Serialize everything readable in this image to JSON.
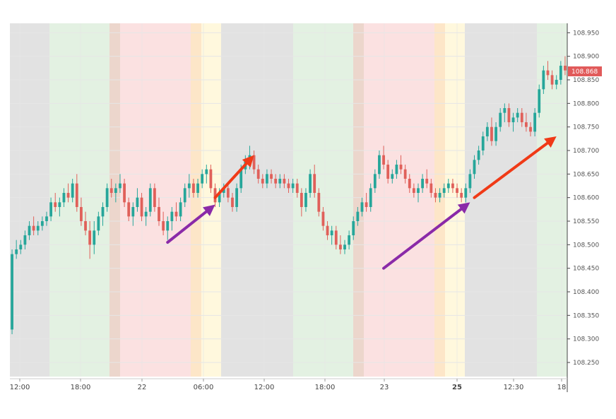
{
  "chart_data": {
    "type": "candlestick",
    "title": "",
    "xlabel": "",
    "ylabel": "",
    "ylim": [
      108.22,
      108.97
    ],
    "x_ticks": [
      "12:00",
      "18:00",
      "22",
      "06:00",
      "12:00",
      "18:00",
      "23",
      "25",
      "12:30",
      "18"
    ],
    "y_ticks": [
      "108.950",
      "108.900",
      "108.850",
      "108.800",
      "108.750",
      "108.700",
      "108.650",
      "108.600",
      "108.550",
      "108.500",
      "108.450",
      "108.400",
      "108.350",
      "108.300",
      "108.250"
    ],
    "y_tick_values": [
      108.95,
      108.9,
      108.85,
      108.8,
      108.75,
      108.7,
      108.65,
      108.6,
      108.55,
      108.5,
      108.45,
      108.4,
      108.35,
      108.3,
      108.25
    ],
    "last_price": {
      "label": "108.868",
      "value": 108.868,
      "color": "#e15a5a"
    },
    "colors": {
      "up": "#26a69a",
      "down": "#e0605a",
      "grid": "#e6e6e6",
      "axis": "#444444"
    },
    "session_bands": [
      {
        "color": "#e2e2e2"
      },
      {
        "color": "#e3f1e2"
      },
      {
        "color": "#ecd6cc"
      },
      {
        "color": "#fbe1e1"
      },
      {
        "color": "#fde6c8"
      },
      {
        "color": "#fff8dd"
      },
      {
        "color": "#e2e2e2"
      },
      {
        "color": "#e3f1e2"
      },
      {
        "color": "#ecd6cc"
      },
      {
        "color": "#fbe1e1"
      },
      {
        "color": "#fde6c8"
      },
      {
        "color": "#fff8dd"
      },
      {
        "color": "#e2e2e2"
      },
      {
        "color": "#e3f1e2"
      }
    ],
    "arrows": [
      {
        "from": {
          "bar": 36,
          "price": 108.505
        },
        "to": {
          "bar": 47,
          "price": 108.585
        },
        "color": "#8a2aa8"
      },
      {
        "from": {
          "bar": 47,
          "price": 108.6
        },
        "to": {
          "bar": 56,
          "price": 108.69
        },
        "color": "#f03a17"
      },
      {
        "from": {
          "bar": 86,
          "price": 108.45
        },
        "to": {
          "bar": 106,
          "price": 108.59
        },
        "color": "#8a2aa8"
      },
      {
        "from": {
          "bar": 107,
          "price": 108.6
        },
        "to": {
          "bar": 126,
          "price": 108.73
        },
        "color": "#f03a17"
      }
    ],
    "series": [
      {
        "ohlc": [
          [
            108.32,
            108.49,
            108.31,
            108.48
          ],
          [
            108.48,
            108.51,
            108.47,
            108.49
          ],
          [
            108.49,
            108.51,
            108.48,
            108.5
          ],
          [
            108.5,
            108.53,
            108.49,
            108.52
          ],
          [
            108.52,
            108.55,
            108.51,
            108.54
          ],
          [
            108.54,
            108.56,
            108.52,
            108.53
          ],
          [
            108.53,
            108.55,
            108.52,
            108.54
          ],
          [
            108.54,
            108.56,
            108.53,
            108.55
          ],
          [
            108.55,
            108.57,
            108.54,
            108.56
          ],
          [
            108.56,
            108.6,
            108.55,
            108.59
          ],
          [
            108.59,
            108.61,
            108.57,
            108.58
          ],
          [
            108.58,
            108.6,
            108.56,
            108.59
          ],
          [
            108.59,
            108.62,
            108.58,
            108.61
          ],
          [
            108.61,
            108.63,
            108.59,
            108.6
          ],
          [
            108.6,
            108.64,
            108.59,
            108.63
          ],
          [
            108.63,
            108.65,
            108.57,
            108.58
          ],
          [
            108.58,
            108.6,
            108.54,
            108.55
          ],
          [
            108.55,
            108.57,
            108.52,
            108.53
          ],
          [
            108.53,
            108.55,
            108.47,
            108.5
          ],
          [
            108.5,
            108.55,
            108.48,
            108.53
          ],
          [
            108.53,
            108.57,
            108.52,
            108.56
          ],
          [
            108.56,
            108.59,
            108.54,
            108.58
          ],
          [
            108.58,
            108.63,
            108.57,
            108.62
          ],
          [
            108.62,
            108.64,
            108.6,
            108.61
          ],
          [
            108.61,
            108.63,
            108.59,
            108.62
          ],
          [
            108.62,
            108.65,
            108.61,
            108.63
          ],
          [
            108.63,
            108.64,
            108.58,
            108.59
          ],
          [
            108.59,
            108.6,
            108.55,
            108.56
          ],
          [
            108.56,
            108.59,
            108.54,
            108.58
          ],
          [
            108.58,
            108.62,
            108.57,
            108.6
          ],
          [
            108.6,
            108.61,
            108.55,
            108.56
          ],
          [
            108.56,
            108.58,
            108.54,
            108.57
          ],
          [
            108.57,
            108.63,
            108.56,
            108.62
          ],
          [
            108.62,
            108.63,
            108.57,
            108.58
          ],
          [
            108.58,
            108.6,
            108.54,
            108.55
          ],
          [
            108.55,
            108.57,
            108.52,
            108.53
          ],
          [
            108.53,
            108.56,
            108.51,
            108.55
          ],
          [
            108.55,
            108.58,
            108.53,
            108.57
          ],
          [
            108.57,
            108.59,
            108.55,
            108.56
          ],
          [
            108.56,
            108.6,
            108.55,
            108.59
          ],
          [
            108.59,
            108.63,
            108.58,
            108.62
          ],
          [
            108.62,
            108.65,
            108.6,
            108.63
          ],
          [
            108.63,
            108.64,
            108.6,
            108.61
          ],
          [
            108.61,
            108.64,
            108.6,
            108.63
          ],
          [
            108.63,
            108.66,
            108.62,
            108.65
          ],
          [
            108.65,
            108.67,
            108.63,
            108.66
          ],
          [
            108.66,
            108.67,
            108.61,
            108.62
          ],
          [
            108.62,
            108.63,
            108.58,
            108.59
          ],
          [
            108.59,
            108.62,
            108.58,
            108.61
          ],
          [
            108.61,
            108.63,
            108.6,
            108.62
          ],
          [
            108.62,
            108.63,
            108.59,
            108.6
          ],
          [
            108.6,
            108.61,
            108.57,
            108.58
          ],
          [
            108.58,
            108.63,
            108.57,
            108.62
          ],
          [
            108.62,
            108.67,
            108.61,
            108.66
          ],
          [
            108.66,
            108.69,
            108.65,
            108.68
          ],
          [
            108.68,
            108.71,
            108.66,
            108.69
          ],
          [
            108.69,
            108.7,
            108.65,
            108.66
          ],
          [
            108.66,
            108.67,
            108.63,
            108.64
          ],
          [
            108.64,
            108.65,
            108.62,
            108.63
          ],
          [
            108.63,
            108.66,
            108.62,
            108.65
          ],
          [
            108.65,
            108.66,
            108.63,
            108.64
          ],
          [
            108.64,
            108.65,
            108.62,
            108.63
          ],
          [
            108.63,
            108.65,
            108.62,
            108.64
          ],
          [
            108.64,
            108.65,
            108.62,
            108.63
          ],
          [
            108.63,
            108.64,
            108.61,
            108.62
          ],
          [
            108.62,
            108.64,
            108.61,
            108.63
          ],
          [
            108.63,
            108.64,
            108.6,
            108.61
          ],
          [
            108.61,
            108.62,
            108.56,
            108.58
          ],
          [
            108.58,
            108.62,
            108.57,
            108.61
          ],
          [
            108.61,
            108.66,
            108.6,
            108.65
          ],
          [
            108.65,
            108.67,
            108.6,
            108.61
          ],
          [
            108.61,
            108.62,
            108.56,
            108.57
          ],
          [
            108.57,
            108.58,
            108.53,
            108.54
          ],
          [
            108.54,
            108.55,
            108.51,
            108.52
          ],
          [
            108.52,
            108.54,
            108.5,
            108.53
          ],
          [
            108.53,
            108.54,
            108.49,
            108.5
          ],
          [
            108.5,
            108.52,
            108.48,
            108.49
          ],
          [
            108.49,
            108.51,
            108.48,
            108.5
          ],
          [
            108.5,
            108.53,
            108.49,
            108.52
          ],
          [
            108.52,
            108.56,
            108.51,
            108.55
          ],
          [
            108.55,
            108.58,
            108.54,
            108.57
          ],
          [
            108.57,
            108.6,
            108.56,
            108.59
          ],
          [
            108.59,
            108.61,
            108.57,
            108.58
          ],
          [
            108.58,
            108.63,
            108.57,
            108.62
          ],
          [
            108.62,
            108.66,
            108.61,
            108.65
          ],
          [
            108.65,
            108.7,
            108.64,
            108.69
          ],
          [
            108.69,
            108.71,
            108.66,
            108.67
          ],
          [
            108.67,
            108.68,
            108.63,
            108.64
          ],
          [
            108.64,
            108.66,
            108.63,
            108.65
          ],
          [
            108.65,
            108.68,
            108.64,
            108.67
          ],
          [
            108.67,
            108.69,
            108.65,
            108.66
          ],
          [
            108.66,
            108.67,
            108.63,
            108.64
          ],
          [
            108.64,
            108.65,
            108.61,
            108.62
          ],
          [
            108.62,
            108.63,
            108.6,
            108.61
          ],
          [
            108.61,
            108.63,
            108.59,
            108.62
          ],
          [
            108.62,
            108.65,
            108.61,
            108.64
          ],
          [
            108.64,
            108.66,
            108.62,
            108.63
          ],
          [
            108.63,
            108.64,
            108.6,
            108.61
          ],
          [
            108.61,
            108.62,
            108.59,
            108.6
          ],
          [
            108.6,
            108.62,
            108.59,
            108.61
          ],
          [
            108.61,
            108.63,
            108.6,
            108.62
          ],
          [
            108.62,
            108.64,
            108.61,
            108.63
          ],
          [
            108.63,
            108.64,
            108.61,
            108.62
          ],
          [
            108.62,
            108.63,
            108.6,
            108.61
          ],
          [
            108.61,
            108.62,
            108.59,
            108.6
          ],
          [
            108.6,
            108.63,
            108.59,
            108.62
          ],
          [
            108.62,
            108.66,
            108.61,
            108.65
          ],
          [
            108.65,
            108.69,
            108.64,
            108.68
          ],
          [
            108.68,
            108.71,
            108.67,
            108.7
          ],
          [
            108.7,
            108.74,
            108.69,
            108.73
          ],
          [
            108.73,
            108.76,
            108.72,
            108.75
          ],
          [
            108.75,
            108.77,
            108.71,
            108.72
          ],
          [
            108.72,
            108.76,
            108.71,
            108.75
          ],
          [
            108.75,
            108.79,
            108.74,
            108.78
          ],
          [
            108.78,
            108.8,
            108.76,
            108.79
          ],
          [
            108.79,
            108.8,
            108.75,
            108.76
          ],
          [
            108.76,
            108.78,
            108.74,
            108.77
          ],
          [
            108.77,
            108.79,
            108.76,
            108.78
          ],
          [
            108.78,
            108.79,
            108.75,
            108.76
          ],
          [
            108.76,
            108.78,
            108.74,
            108.75
          ],
          [
            108.75,
            108.76,
            108.73,
            108.74
          ],
          [
            108.74,
            108.79,
            108.73,
            108.78
          ],
          [
            108.78,
            108.84,
            108.77,
            108.83
          ],
          [
            108.83,
            108.88,
            108.82,
            108.87
          ],
          [
            108.87,
            108.89,
            108.85,
            108.86
          ],
          [
            108.86,
            108.87,
            108.83,
            108.84
          ],
          [
            108.84,
            108.86,
            108.83,
            108.85
          ],
          [
            108.85,
            108.89,
            108.84,
            108.88
          ],
          [
            108.88,
            108.9,
            108.86,
            108.87
          ]
        ]
      }
    ]
  }
}
